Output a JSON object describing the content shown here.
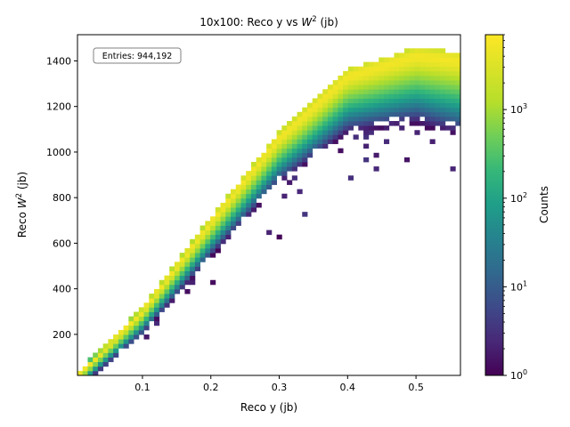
{
  "chart_data": {
    "type": "heatmap",
    "title_main": "10x100: Reco y vs ",
    "title_var": "W",
    "title_exp": "2",
    "title_tail": " (jb)",
    "xlabel": "Reco y (jb)",
    "ylabel_main": "Reco ",
    "ylabel_var": "W",
    "ylabel_exp": "2",
    "ylabel_tail": " (jb)",
    "xlim": [
      0.005,
      0.565
    ],
    "ylim": [
      20,
      1515
    ],
    "x_ticks": [
      0.1,
      0.2,
      0.3,
      0.4,
      0.5
    ],
    "x_tick_labels": [
      "0.1",
      "0.2",
      "0.3",
      "0.4",
      "0.5"
    ],
    "y_ticks": [
      200,
      400,
      600,
      800,
      1000,
      1200,
      1400
    ],
    "y_tick_labels": [
      "200",
      "400",
      "600",
      "800",
      "1000",
      "1200",
      "1400"
    ],
    "bins_x": 75,
    "bins_y": 75,
    "annotation": "Entries: 944,192",
    "colorbar": {
      "label": "Counts",
      "scale": "log",
      "range": [
        1,
        7000
      ],
      "colormap": "viridis",
      "tick_values": [
        1,
        10,
        100,
        1000
      ],
      "tick_bases": [
        "10",
        "10",
        "10",
        "10"
      ],
      "tick_exps": [
        "0",
        "1",
        "2",
        "3"
      ]
    },
    "ridge_description": {
      "peak_band_center_points": [
        {
          "x": 0.01,
          "w2": 30
        },
        {
          "x": 0.1,
          "w2": 300
        },
        {
          "x": 0.2,
          "w2": 690
        },
        {
          "x": 0.3,
          "w2": 1060
        },
        {
          "x": 0.4,
          "w2": 1330
        },
        {
          "x": 0.5,
          "w2": 1420
        },
        {
          "x": 0.56,
          "w2": 1400
        }
      ],
      "peak_counts": 6000
    }
  }
}
